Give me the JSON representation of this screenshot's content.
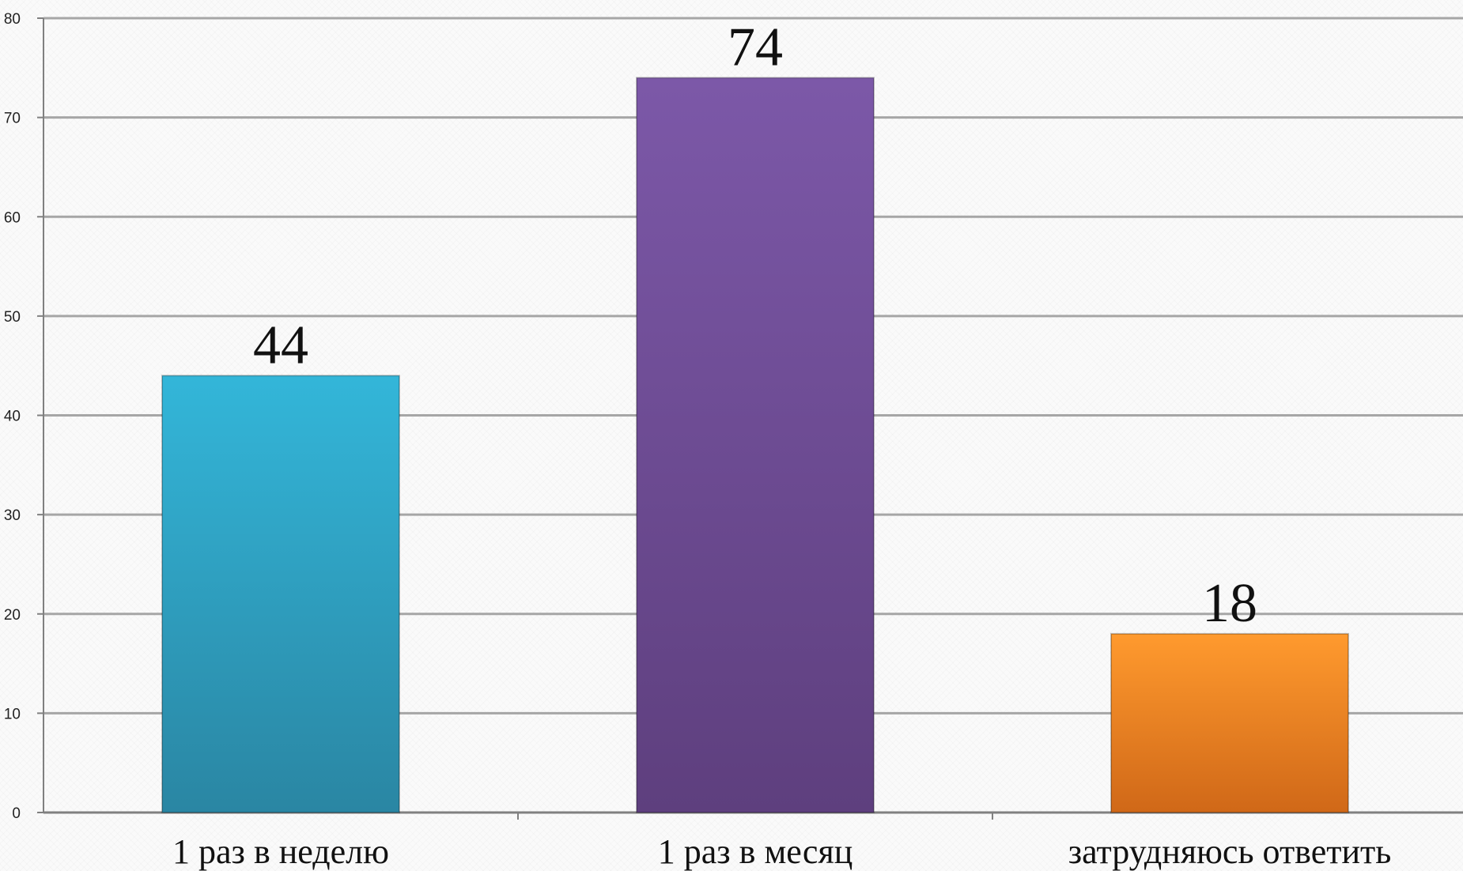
{
  "chart_data": {
    "type": "bar",
    "categories": [
      "1 раз в неделю",
      "1 раз в месяц",
      "затрудняюсь ответить"
    ],
    "values": [
      44,
      74,
      18
    ],
    "data_labels": [
      "44",
      "74",
      "18"
    ],
    "ylim": [
      0,
      80
    ],
    "yticks": [
      0,
      10,
      20,
      30,
      40,
      50,
      60,
      70,
      80
    ],
    "ytick_labels": [
      "0",
      "10",
      "20",
      "30",
      "40",
      "50",
      "60",
      "70",
      "80"
    ],
    "grid": true,
    "legend": "none",
    "title": "",
    "xlabel": "",
    "ylabel": "",
    "colors": [
      {
        "top": "#33b6d9",
        "bottom": "#2a86a3"
      },
      {
        "top": "#7c58a8",
        "bottom": "#5e3f7e"
      },
      {
        "top": "#ff9a2e",
        "bottom": "#d06818"
      }
    ],
    "gridline_color": "#a6a6a6",
    "axis_color": "#808080"
  }
}
